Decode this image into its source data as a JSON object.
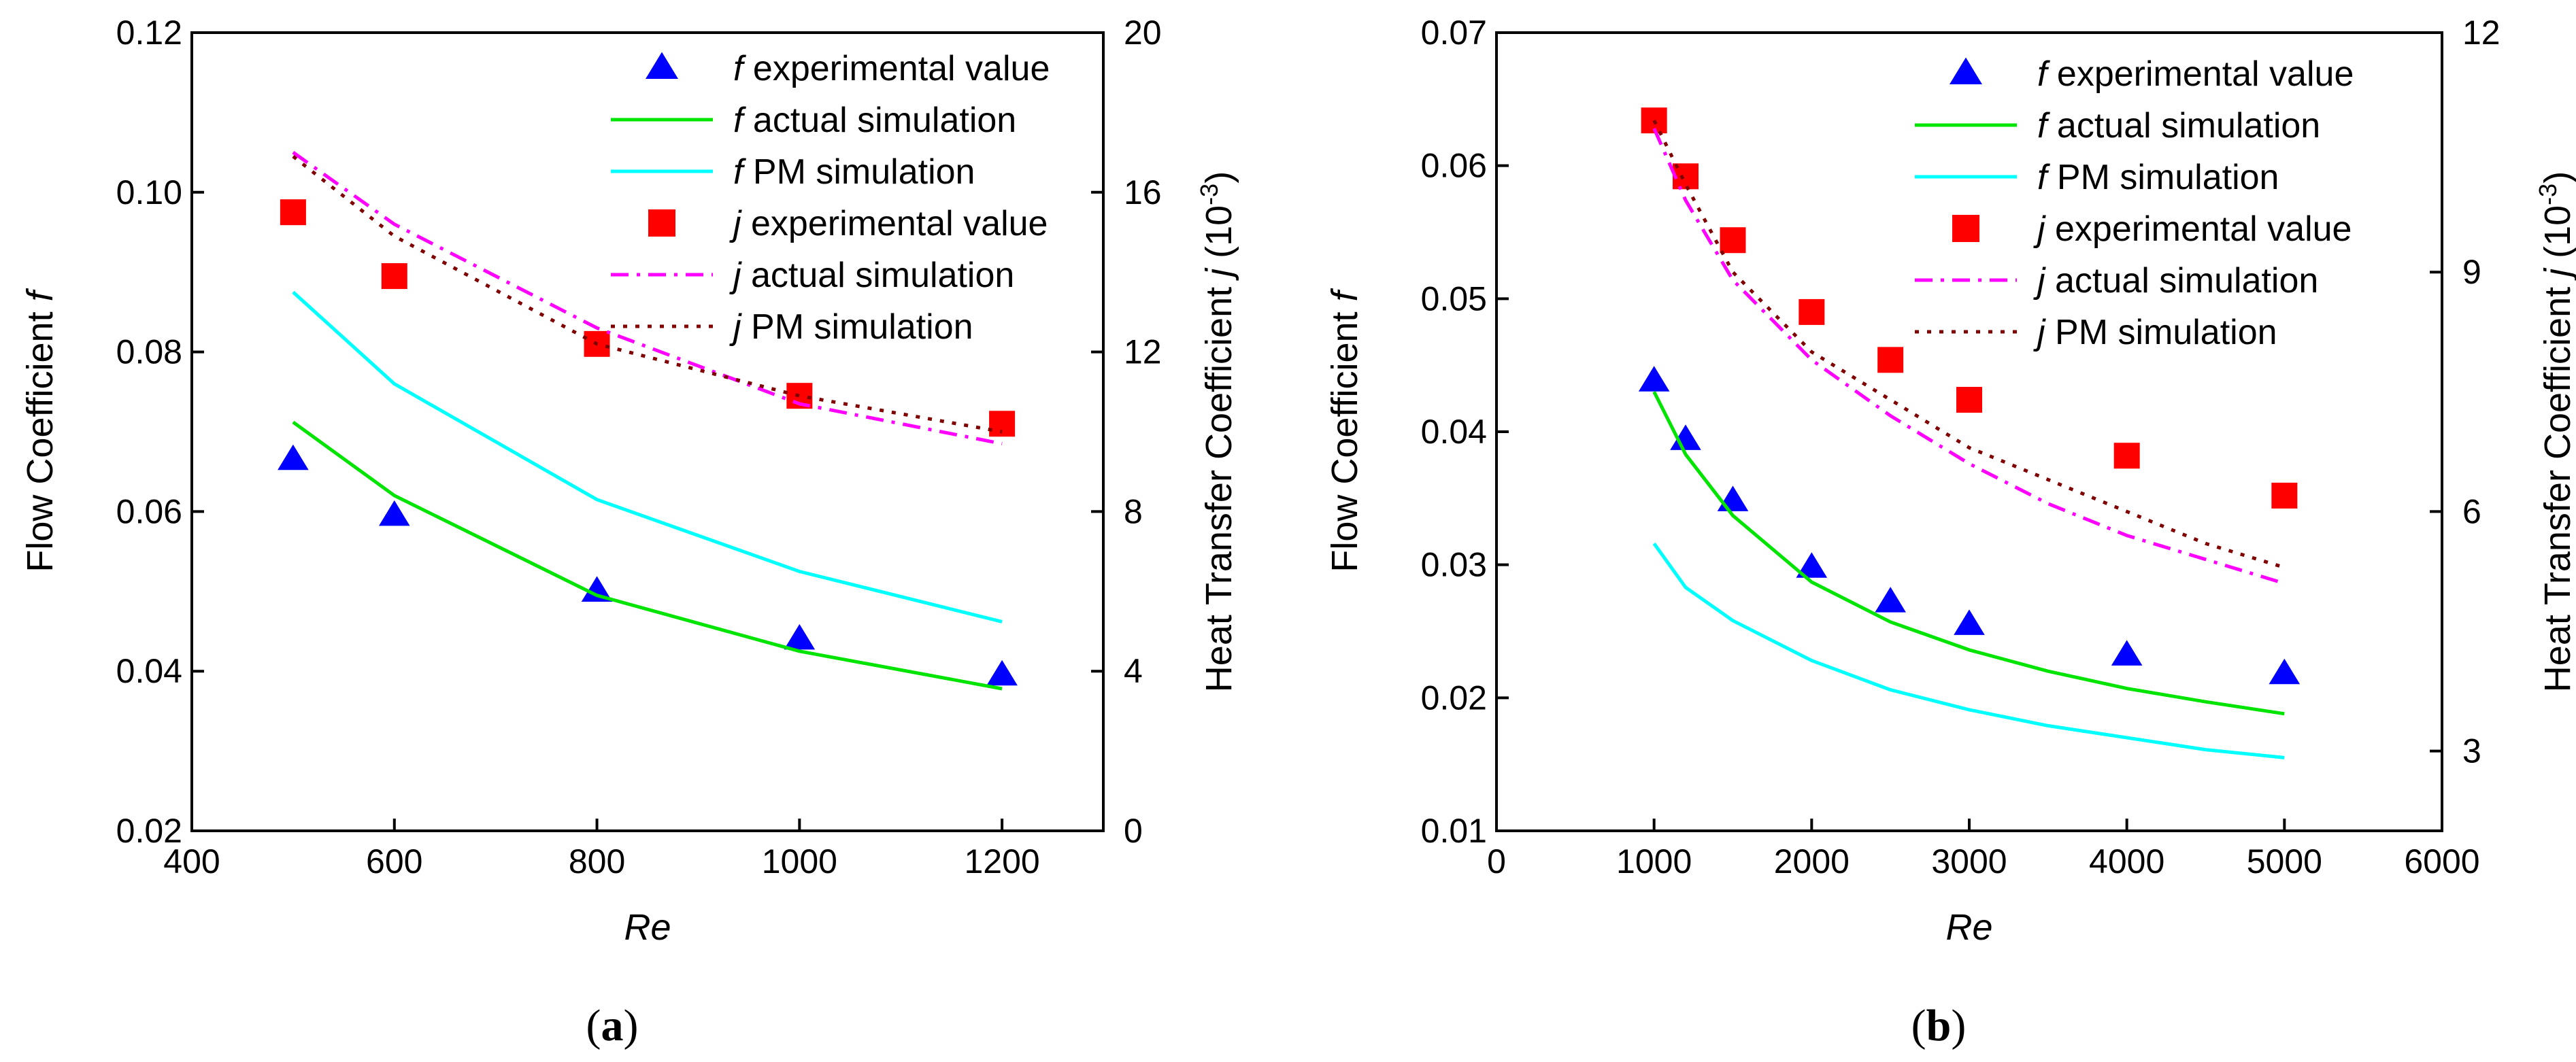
{
  "chart_data": [
    {
      "type": "line",
      "panel_label": "(a)",
      "panel_letter": "a",
      "xlabel": "Re",
      "ylabel_left": "Flow Coefficient",
      "ylabel_left_symbol": "f",
      "ylabel_right": "Heat Transfer Coefficient",
      "ylabel_right_symbol": "j",
      "ylabel_right_unit": "(10",
      "ylabel_right_unit_exp": "-3",
      "ylabel_right_unit_close": ")",
      "xlim": [
        400,
        1300
      ],
      "ylim_left": [
        0.02,
        0.12
      ],
      "ylim_right": [
        0,
        20
      ],
      "xticks": [
        400,
        600,
        800,
        1000,
        1200
      ],
      "xtick_labels": [
        "400",
        "600",
        "800",
        "1000",
        "1200"
      ],
      "yticks_left": [
        0.02,
        0.04,
        0.06,
        0.08,
        0.1,
        0.12
      ],
      "ytick_labels_left": [
        "0.02",
        "0.04",
        "0.06",
        "0.08",
        "0.10",
        "0.12"
      ],
      "yticks_right": [
        0,
        4,
        8,
        12,
        16,
        20
      ],
      "ytick_labels_right": [
        "0",
        "4",
        "8",
        "12",
        "16",
        "20"
      ],
      "legend_position": "top-right",
      "series": [
        {
          "key": "f_exp",
          "symbol": "f",
          "name": "experimental value",
          "kind": "marker",
          "marker": "triangle",
          "color": "#0000ff",
          "axis": "left",
          "x": [
            500,
            600,
            800,
            1000,
            1200
          ],
          "y": [
            0.0665,
            0.0595,
            0.05,
            0.044,
            0.0395
          ]
        },
        {
          "key": "f_act",
          "symbol": "f",
          "name": "actual simulation",
          "kind": "line",
          "dash": "solid",
          "color": "#00e400",
          "axis": "left",
          "x": [
            500,
            600,
            800,
            1000,
            1200
          ],
          "y": [
            0.0712,
            0.062,
            0.0495,
            0.0425,
            0.0378
          ]
        },
        {
          "key": "f_pm",
          "symbol": "f",
          "name": "PM simulation",
          "kind": "line",
          "dash": "solid",
          "color": "#00ffff",
          "axis": "left",
          "x": [
            500,
            600,
            800,
            1000,
            1200
          ],
          "y": [
            0.0875,
            0.076,
            0.0615,
            0.0525,
            0.0462
          ]
        },
        {
          "key": "j_exp",
          "symbol": "j",
          "name": "experimental value",
          "kind": "marker",
          "marker": "square",
          "color": "#ff0000",
          "axis": "right",
          "x": [
            500,
            600,
            800,
            1000,
            1200
          ],
          "y": [
            15.5,
            13.9,
            12.2,
            10.9,
            10.2
          ]
        },
        {
          "key": "j_act",
          "symbol": "j",
          "name": "actual simulation",
          "kind": "line",
          "dash": "dashdot",
          "color": "#ff00ff",
          "axis": "right",
          "x": [
            500,
            600,
            800,
            1000,
            1200
          ],
          "y": [
            17.0,
            15.2,
            12.6,
            10.7,
            9.7
          ]
        },
        {
          "key": "j_pm",
          "symbol": "j",
          "name": "PM simulation",
          "kind": "line",
          "dash": "dot",
          "color": "#800000",
          "axis": "right",
          "x": [
            500,
            600,
            800,
            1000,
            1200
          ],
          "y": [
            16.9,
            14.9,
            12.2,
            10.9,
            10.0
          ]
        }
      ]
    },
    {
      "type": "line",
      "panel_label": "(b)",
      "panel_letter": "b",
      "xlabel": "Re",
      "ylabel_left": "Flow Coefficient",
      "ylabel_left_symbol": "f",
      "ylabel_right": "Heat Transfer Coefficient",
      "ylabel_right_symbol": "j",
      "ylabel_right_unit": "(10",
      "ylabel_right_unit_exp": "-3",
      "ylabel_right_unit_close": ")",
      "xlim": [
        0,
        6000
      ],
      "ylim_left": [
        0.01,
        0.07
      ],
      "ylim_right": [
        2,
        12
      ],
      "xticks": [
        0,
        1000,
        2000,
        3000,
        4000,
        5000,
        6000
      ],
      "xtick_labels": [
        "0",
        "1000",
        "2000",
        "3000",
        "4000",
        "5000",
        "6000"
      ],
      "yticks_left": [
        0.01,
        0.02,
        0.03,
        0.04,
        0.05,
        0.06,
        0.07
      ],
      "ytick_labels_left": [
        "0.01",
        "0.02",
        "0.03",
        "0.04",
        "0.05",
        "0.06",
        "0.07"
      ],
      "yticks_right": [
        3,
        6,
        9,
        12
      ],
      "ytick_labels_right": [
        "3",
        "6",
        "9",
        "12"
      ],
      "legend_position": "top-right",
      "series": [
        {
          "key": "f_exp",
          "symbol": "f",
          "name": "experimental value",
          "kind": "marker",
          "marker": "triangle",
          "color": "#0000ff",
          "axis": "left",
          "x": [
            1000,
            1200,
            1500,
            2000,
            2500,
            3000,
            4000,
            5000
          ],
          "y": [
            0.0438,
            0.0394,
            0.0348,
            0.0298,
            0.0272,
            0.0255,
            0.0232,
            0.0218
          ]
        },
        {
          "key": "f_act",
          "symbol": "f",
          "name": "actual simulation",
          "kind": "line",
          "dash": "solid",
          "color": "#00e400",
          "axis": "left",
          "x": [
            1000,
            1200,
            1500,
            2000,
            2500,
            3000,
            3500,
            4000,
            4500,
            5000
          ],
          "y": [
            0.043,
            0.0383,
            0.0337,
            0.0287,
            0.0257,
            0.0236,
            0.022,
            0.0207,
            0.0197,
            0.0188
          ]
        },
        {
          "key": "f_pm",
          "symbol": "f",
          "name": "PM simulation",
          "kind": "line",
          "dash": "solid",
          "color": "#00ffff",
          "axis": "left",
          "x": [
            1000,
            1200,
            1500,
            2000,
            2500,
            3000,
            3500,
            4000,
            4500,
            5000
          ],
          "y": [
            0.0316,
            0.0283,
            0.0258,
            0.0228,
            0.0206,
            0.0191,
            0.0179,
            0.017,
            0.0161,
            0.0155
          ]
        },
        {
          "key": "j_exp",
          "symbol": "j",
          "name": "experimental value",
          "kind": "marker",
          "marker": "square",
          "color": "#ff0000",
          "axis": "right",
          "x": [
            1000,
            1200,
            1500,
            2000,
            2500,
            3000,
            4000,
            5000
          ],
          "y": [
            10.9,
            10.2,
            9.4,
            8.5,
            7.9,
            7.4,
            6.7,
            6.2
          ]
        },
        {
          "key": "j_act",
          "symbol": "j",
          "name": "actual simulation",
          "kind": "line",
          "dash": "dashdot",
          "color": "#ff00ff",
          "axis": "right",
          "x": [
            1000,
            1200,
            1500,
            2000,
            2500,
            3000,
            3500,
            4000,
            4500,
            5000
          ],
          "y": [
            10.8,
            9.9,
            8.9,
            7.9,
            7.2,
            6.6,
            6.1,
            5.7,
            5.4,
            5.1
          ]
        },
        {
          "key": "j_pm",
          "symbol": "j",
          "name": "PM simulation",
          "kind": "line",
          "dash": "dot",
          "color": "#800000",
          "axis": "right",
          "x": [
            1000,
            1200,
            1500,
            2000,
            2500,
            3000,
            3500,
            4000,
            4500,
            5000
          ],
          "y": [
            10.9,
            10.1,
            9.0,
            8.0,
            7.4,
            6.8,
            6.4,
            6.0,
            5.6,
            5.3
          ]
        }
      ]
    }
  ]
}
